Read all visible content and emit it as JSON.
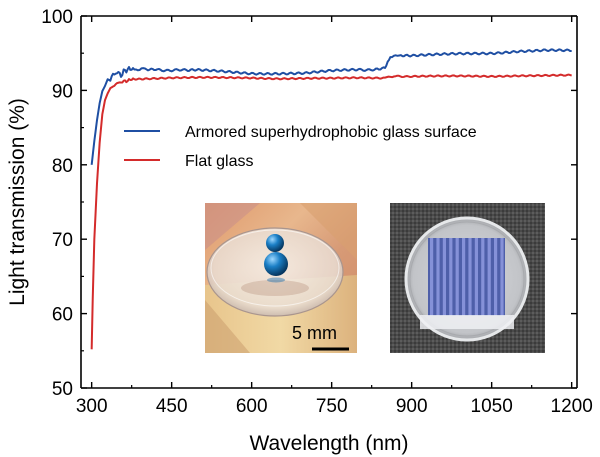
{
  "chart_data": {
    "type": "line",
    "title": "",
    "xlabel": "Wavelength (nm)",
    "ylabel": "Light transmission (%)",
    "xlim": [
      280,
      1210
    ],
    "ylim": [
      50,
      100
    ],
    "xticks": [
      300,
      450,
      600,
      750,
      900,
      1050,
      1200
    ],
    "yticks": [
      50,
      60,
      70,
      80,
      90,
      100
    ],
    "grid": false,
    "legend_position": "upper-left",
    "series": [
      {
        "name": "Armored superhydrophobic glass surface",
        "color": "#1f4fa3",
        "x": [
          300,
          305,
          310,
          315,
          320,
          325,
          330,
          335,
          340,
          345,
          350,
          355,
          360,
          365,
          370,
          375,
          380,
          390,
          400,
          420,
          450,
          480,
          500,
          550,
          600,
          650,
          700,
          750,
          800,
          830,
          850,
          855,
          860,
          870,
          880,
          900,
          950,
          1000,
          1050,
          1100,
          1150,
          1200
        ],
        "y": [
          80.0,
          83.2,
          86.0,
          88.3,
          89.9,
          90.6,
          91.5,
          91.3,
          92.3,
          92.1,
          92.6,
          91.8,
          92.7,
          92.6,
          93.0,
          92.8,
          92.9,
          92.8,
          92.9,
          92.8,
          92.7,
          92.7,
          92.7,
          92.5,
          92.3,
          92.3,
          92.3,
          92.6,
          92.8,
          92.8,
          93.1,
          93.7,
          94.6,
          94.6,
          94.6,
          94.7,
          94.8,
          94.9,
          95.0,
          95.3,
          95.4,
          95.3
        ]
      },
      {
        "name": "Flat glass",
        "color": "#d42b2b",
        "x": [
          300,
          302,
          305,
          310,
          315,
          320,
          325,
          330,
          335,
          340,
          345,
          350,
          355,
          360,
          365,
          370,
          375,
          380,
          400,
          450,
          500,
          550,
          600,
          650,
          700,
          750,
          800,
          850,
          860,
          870,
          900,
          950,
          1000,
          1050,
          1100,
          1150,
          1200
        ],
        "y": [
          55.2,
          62.0,
          70.0,
          77.5,
          83.0,
          86.8,
          88.7,
          89.6,
          90.3,
          90.5,
          90.8,
          91.1,
          91.0,
          91.3,
          91.2,
          91.4,
          91.5,
          91.5,
          91.6,
          91.7,
          91.7,
          91.7,
          91.7,
          91.6,
          91.6,
          91.6,
          91.7,
          91.7,
          91.9,
          91.9,
          91.9,
          91.9,
          91.9,
          91.9,
          92.0,
          92.0,
          92.0
        ]
      }
    ],
    "insets": [
      {
        "scale_label": "5 mm"
      },
      {
        "scale_label": ""
      }
    ]
  }
}
